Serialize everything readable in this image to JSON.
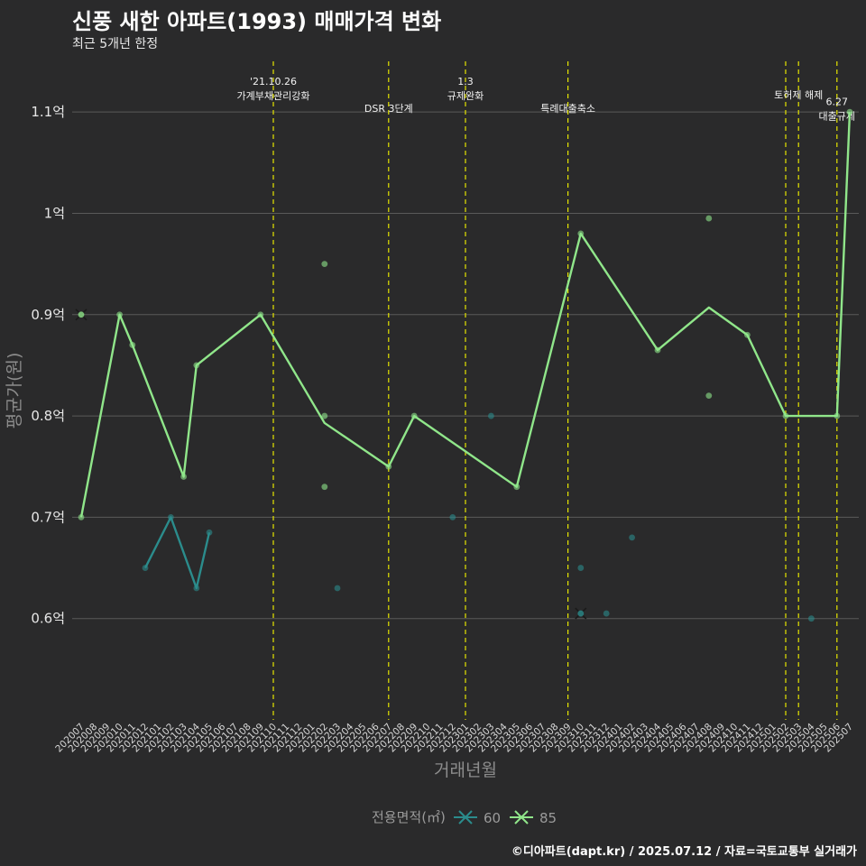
{
  "header": {
    "title": "신풍 새한 아파트(1993) 매매가격 변화",
    "subtitle": "최근 5개년 한정",
    "caption": "©디아파트(dapt.kr) / 2025.07.12 / 자료=국토교통부 실거래가"
  },
  "colors": {
    "background": "#2a2a2b",
    "grid": "#5a5a5a",
    "series_60": "#2b8c8c",
    "series_85": "#90e68a",
    "event_line": "#e6e600"
  },
  "chart_data": {
    "type": "line",
    "title": "신풍 새한 아파트(1993) 매매가격 변화",
    "subtitle": "최근 5개년 한정",
    "xlabel": "거래년월",
    "ylabel": "평균가(원)",
    "ylim": [
      0.5,
      1.15
    ],
    "y_ticks": [
      {
        "value": 0.6,
        "label": "0.6억"
      },
      {
        "value": 0.7,
        "label": "0.7억"
      },
      {
        "value": 0.8,
        "label": "0.8억"
      },
      {
        "value": 0.9,
        "label": "0.9억"
      },
      {
        "value": 1.0,
        "label": "1억"
      },
      {
        "value": 1.1,
        "label": "1.1억"
      }
    ],
    "x_categories": [
      "202007",
      "202008",
      "202009",
      "202010",
      "202011",
      "202012",
      "202101",
      "202102",
      "202103",
      "202104",
      "202105",
      "202106",
      "202107",
      "202108",
      "202109",
      "202110",
      "202111",
      "202112",
      "202201",
      "202202",
      "202203",
      "202204",
      "202205",
      "202206",
      "202207",
      "202208",
      "202209",
      "202210",
      "202211",
      "202212",
      "202301",
      "202302",
      "202303",
      "202304",
      "202305",
      "202306",
      "202307",
      "202308",
      "202309",
      "202310",
      "202311",
      "202312",
      "202401",
      "202402",
      "202403",
      "202404",
      "202405",
      "202406",
      "202407",
      "202408",
      "202409",
      "202410",
      "202411",
      "202412",
      "202501",
      "202502",
      "202503",
      "202504",
      "202505",
      "202506",
      "202507"
    ],
    "grid": true,
    "legend": {
      "title": "전용면적(㎡)",
      "position": "bottom",
      "items": [
        {
          "name": "60",
          "color": "#2b8c8c"
        },
        {
          "name": "85",
          "color": "#90e68a"
        }
      ]
    },
    "series": [
      {
        "name": "60",
        "color": "#2b8c8c",
        "line": [
          {
            "x": "202012",
            "y": 0.65
          },
          {
            "x": "202102",
            "y": 0.7
          },
          {
            "x": "202104",
            "y": 0.63
          },
          {
            "x": "202105",
            "y": 0.685
          }
        ],
        "points": [
          {
            "x": "202012",
            "y": 0.65
          },
          {
            "x": "202102",
            "y": 0.7
          },
          {
            "x": "202104",
            "y": 0.63
          },
          {
            "x": "202105",
            "y": 0.685
          },
          {
            "x": "202203",
            "y": 0.63
          },
          {
            "x": "202212",
            "y": 0.7
          },
          {
            "x": "202303",
            "y": 0.8
          },
          {
            "x": "202310",
            "y": 0.65
          },
          {
            "x": "202312",
            "y": 0.605
          },
          {
            "x": "202402",
            "y": 0.68
          },
          {
            "x": "202504",
            "y": 0.6
          }
        ],
        "cross": {
          "x": "202310",
          "y": 0.605
        }
      },
      {
        "name": "85",
        "color": "#90e68a",
        "line": [
          {
            "x": "202007",
            "y": 0.7
          },
          {
            "x": "202010",
            "y": 0.9
          },
          {
            "x": "202011",
            "y": 0.87
          },
          {
            "x": "202103",
            "y": 0.74
          },
          {
            "x": "202104",
            "y": 0.85
          },
          {
            "x": "202109",
            "y": 0.9
          },
          {
            "x": "202202",
            "y": 0.793
          },
          {
            "x": "202207",
            "y": 0.75
          },
          {
            "x": "202209",
            "y": 0.8
          },
          {
            "x": "202305",
            "y": 0.73
          },
          {
            "x": "202310",
            "y": 0.98
          },
          {
            "x": "202404",
            "y": 0.865
          },
          {
            "x": "202408",
            "y": 0.907
          },
          {
            "x": "202411",
            "y": 0.88
          },
          {
            "x": "202502",
            "y": 0.8
          },
          {
            "x": "202506",
            "y": 0.8
          },
          {
            "x": "202507",
            "y": 1.1
          }
        ],
        "points": [
          {
            "x": "202007",
            "y": 0.7
          },
          {
            "x": "202010",
            "y": 0.9
          },
          {
            "x": "202011",
            "y": 0.87
          },
          {
            "x": "202103",
            "y": 0.74
          },
          {
            "x": "202104",
            "y": 0.85
          },
          {
            "x": "202109",
            "y": 0.9
          },
          {
            "x": "202202",
            "y": 0.95
          },
          {
            "x": "202202",
            "y": 0.8
          },
          {
            "x": "202202",
            "y": 0.73
          },
          {
            "x": "202207",
            "y": 0.75
          },
          {
            "x": "202209",
            "y": 0.8
          },
          {
            "x": "202305",
            "y": 0.73
          },
          {
            "x": "202310",
            "y": 0.98
          },
          {
            "x": "202404",
            "y": 0.865
          },
          {
            "x": "202408",
            "y": 0.995
          },
          {
            "x": "202408",
            "y": 0.82
          },
          {
            "x": "202411",
            "y": 0.88
          },
          {
            "x": "202502",
            "y": 0.8
          },
          {
            "x": "202506",
            "y": 0.8
          },
          {
            "x": "202507",
            "y": 1.1
          }
        ],
        "cross": {
          "x": "202007",
          "y": 0.9
        }
      }
    ],
    "events": [
      {
        "x": "202110",
        "lines": [
          "'21.10.26",
          "가계부채관리강화"
        ],
        "row": 0
      },
      {
        "x": "202207",
        "lines": [
          "DSR 3단계"
        ],
        "row": 2
      },
      {
        "x": "202301",
        "lines": [
          "1.3",
          "규제완화"
        ],
        "row": 0
      },
      {
        "x": "202309",
        "lines": [
          "특례대출축소"
        ],
        "row": 2
      },
      {
        "x": "202502",
        "lines": [],
        "row": 0
      },
      {
        "x": "202503",
        "lines": [
          "토허제 해제"
        ],
        "row": 1
      },
      {
        "x": "202506",
        "lines": [
          "6.27",
          "대출규제"
        ],
        "row": 1.5
      }
    ]
  }
}
